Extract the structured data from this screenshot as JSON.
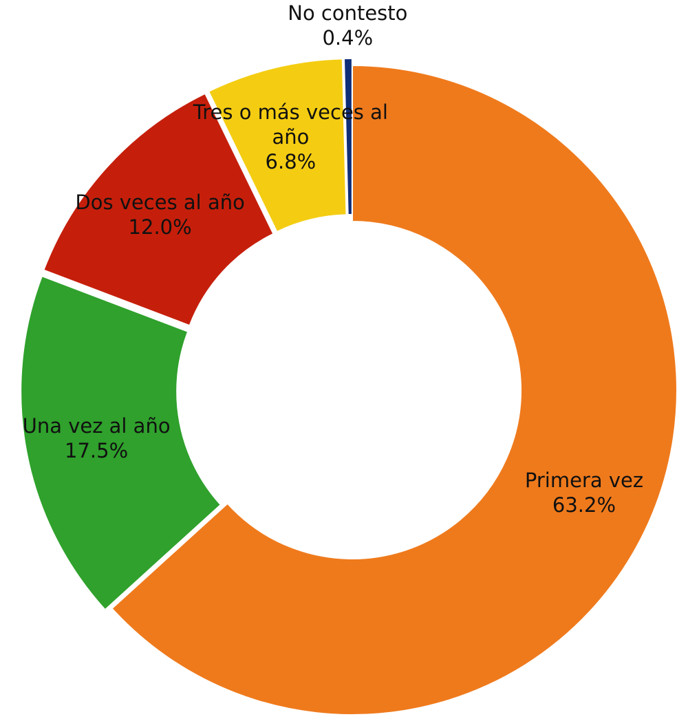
{
  "chart_data": {
    "type": "donut",
    "categories": [
      "Primera vez",
      "Una vez al año",
      "Dos veces al año",
      "Tres o más veces al año",
      "No contesto"
    ],
    "values": [
      63.2,
      17.5,
      12.0,
      6.8,
      0.4
    ],
    "value_labels": [
      "63.2%",
      "17.5%",
      "12.0%",
      "6.8%",
      "0.4%"
    ],
    "colors": [
      "#ef7a1c",
      "#2fa12c",
      "#c51f0b",
      "#f4cd12",
      "#0f2e78"
    ]
  }
}
